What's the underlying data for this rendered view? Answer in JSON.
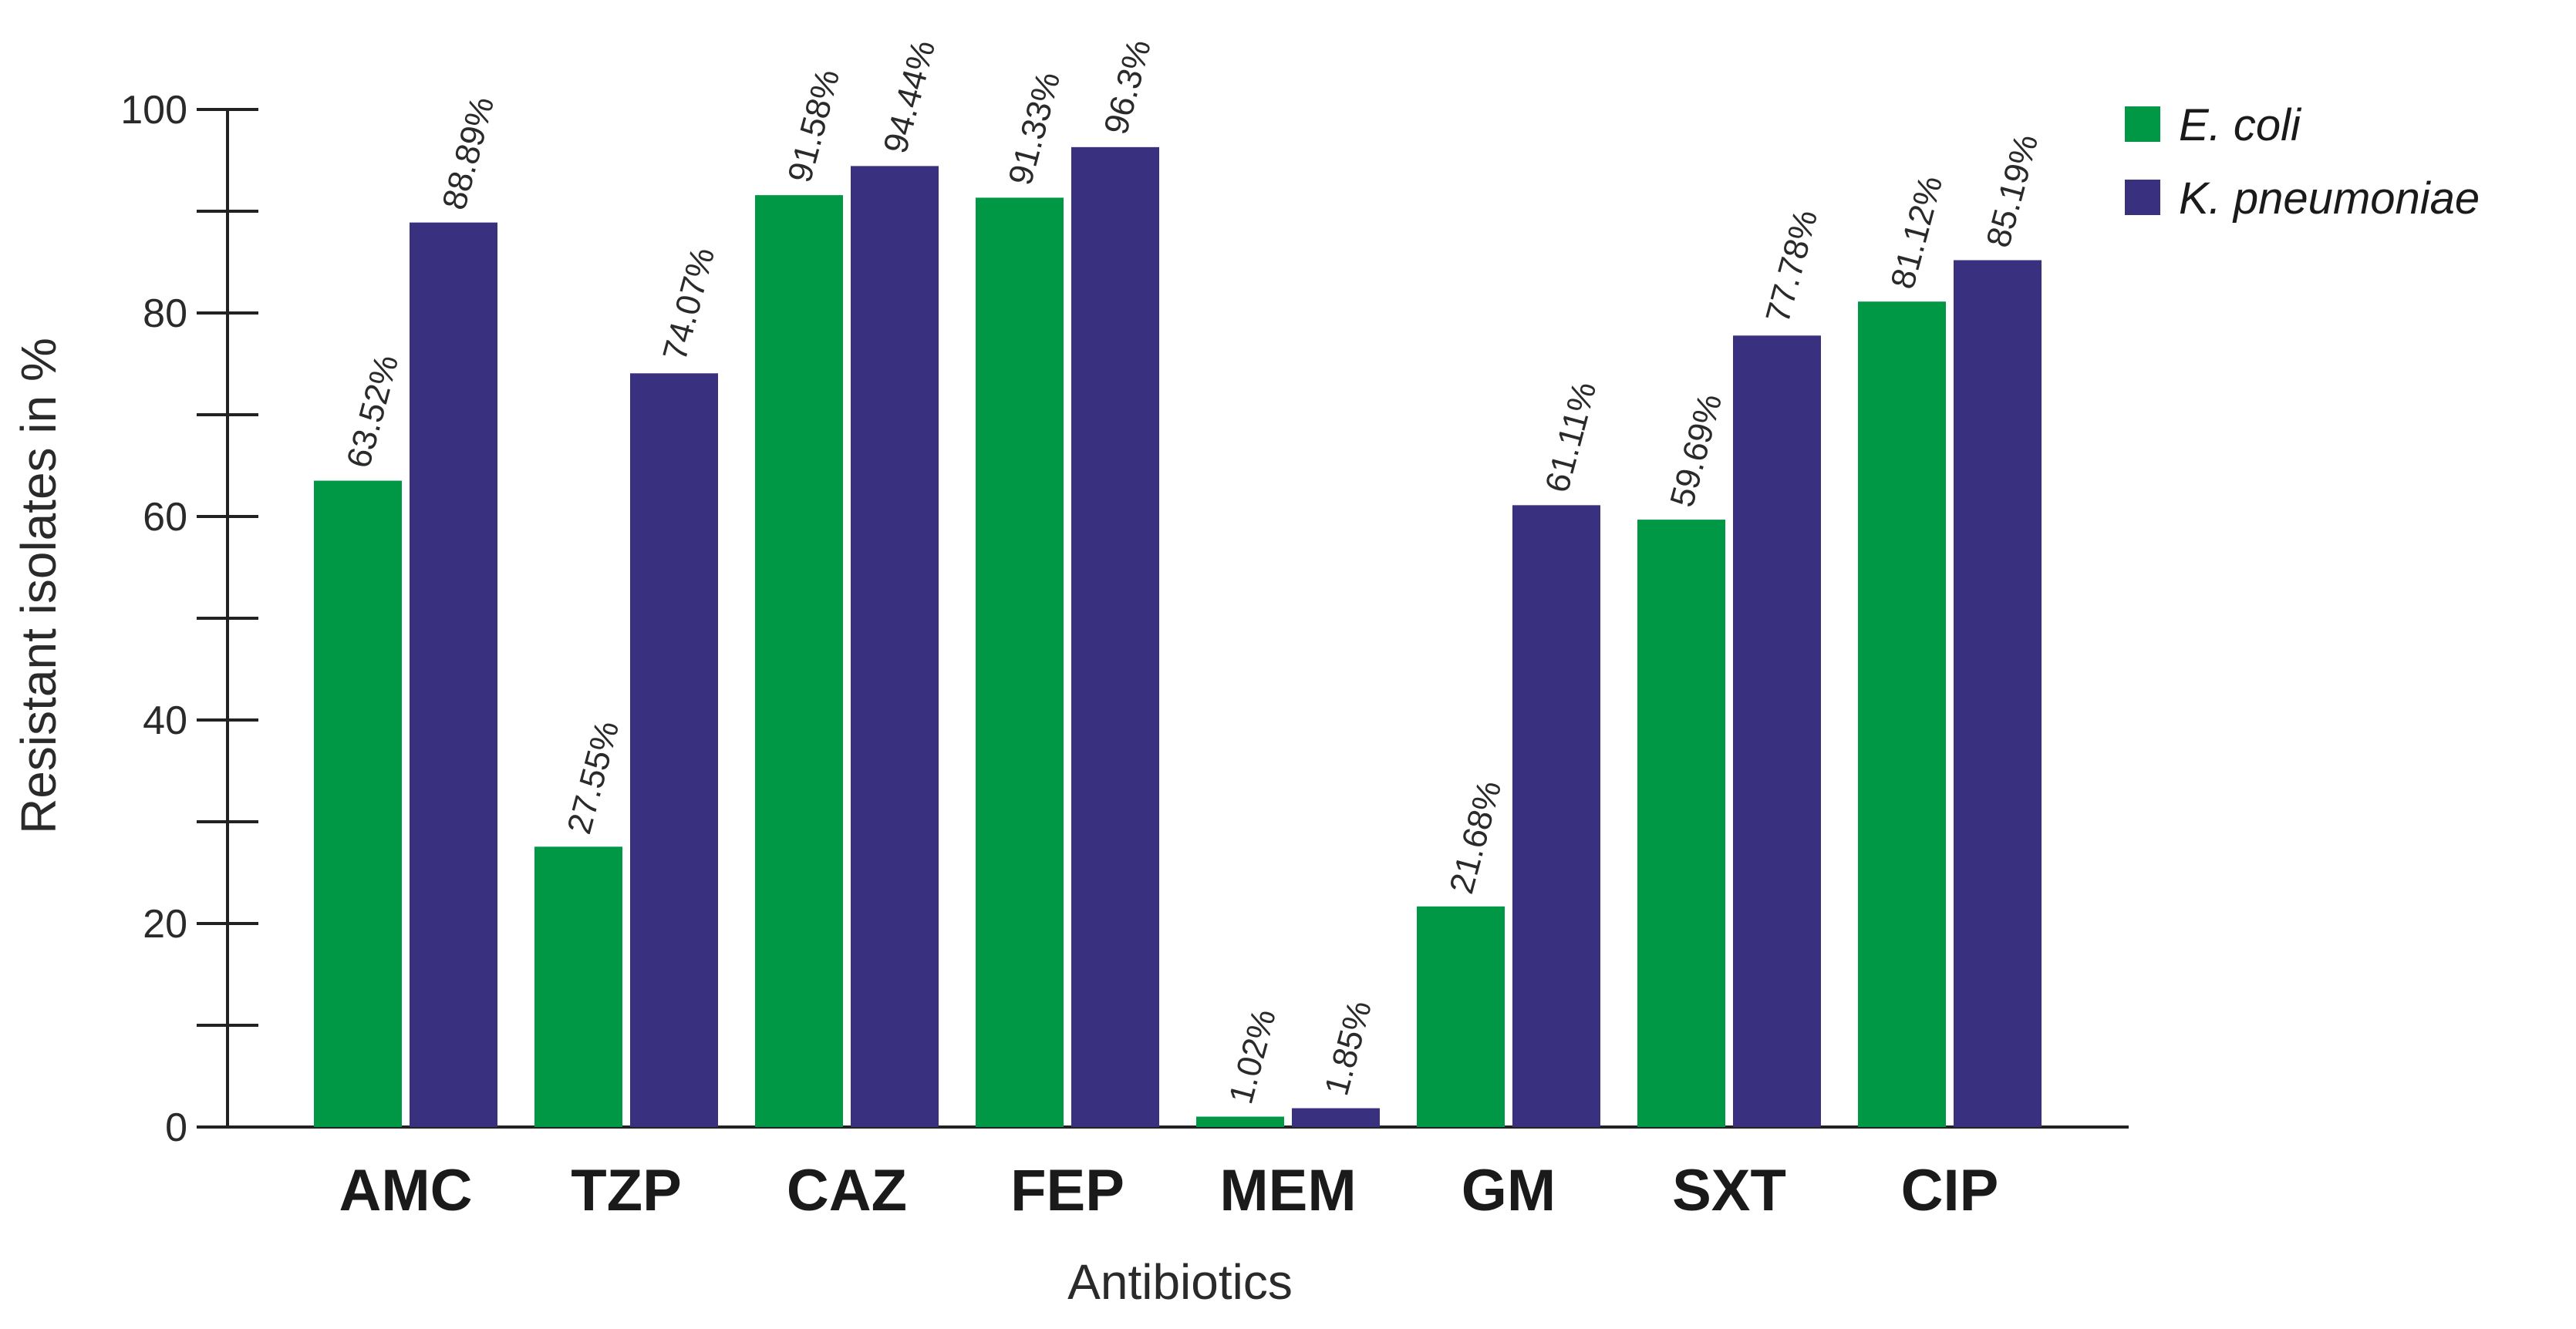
{
  "chart_data": {
    "type": "bar",
    "title": "",
    "xlabel": "Antibiotics",
    "ylabel": "Resistant isolates in %",
    "ylim": [
      0,
      100
    ],
    "yticks": [
      0,
      20,
      40,
      60,
      80,
      100
    ],
    "grid": false,
    "legend_position": "top-right",
    "categories": [
      "AMC",
      "TZP",
      "CAZ",
      "FEP",
      "MEM",
      "GM",
      "SXT",
      "CIP"
    ],
    "series": [
      {
        "name": "E. coli",
        "color": "#009845",
        "values": [
          63.52,
          27.55,
          91.58,
          91.33,
          1.02,
          21.68,
          59.69,
          81.12
        ],
        "labels": [
          "63.52%",
          "27.55%",
          "91.58%",
          "91.33%",
          "1.02%",
          "21.68%",
          "59.69%",
          "81.12%"
        ]
      },
      {
        "name": "K. pneumoniae",
        "color": "#39307f",
        "values": [
          88.89,
          74.07,
          94.44,
          96.3,
          1.85,
          61.11,
          77.78,
          85.19
        ],
        "labels": [
          "88.89%",
          "74.07%",
          "94.44%",
          "96.3%",
          "1.85%",
          "61.11%",
          "77.78%",
          "85.19%"
        ]
      }
    ]
  }
}
